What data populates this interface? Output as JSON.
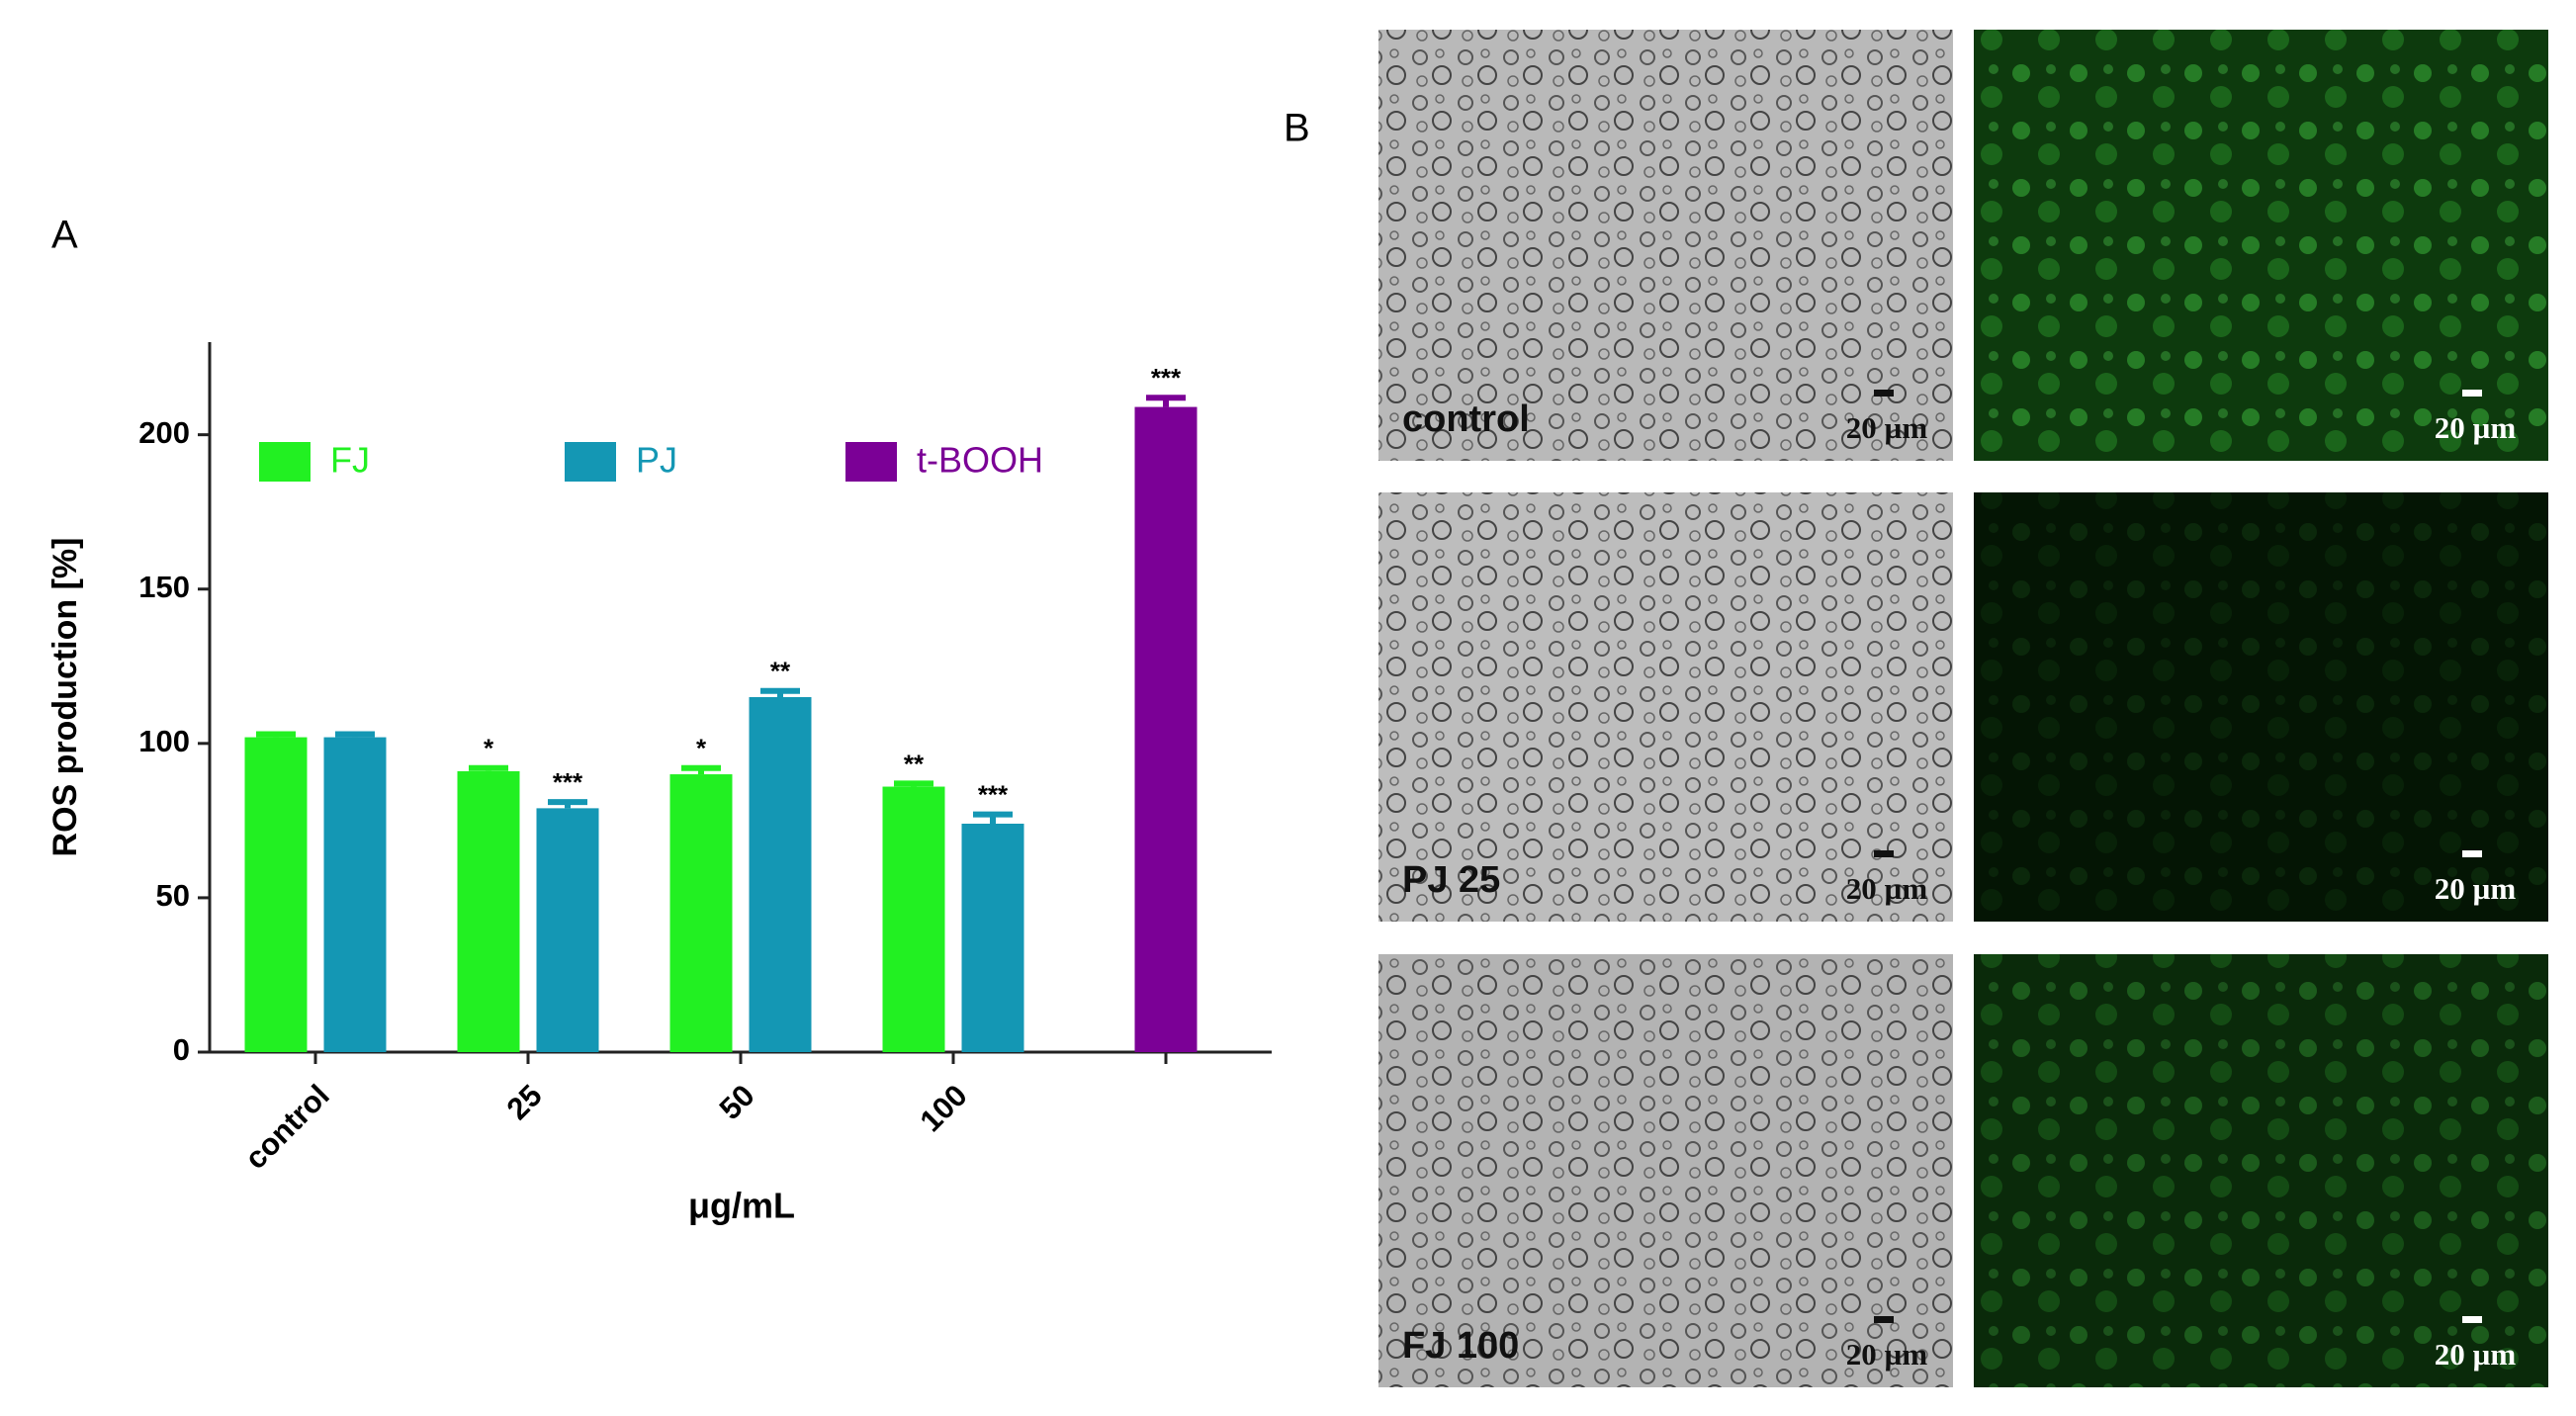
{
  "chart_data": {
    "type": "bar",
    "panel_label": "A",
    "ylabel": "ROS production [%]",
    "xlabel": "μg/mL",
    "categories": [
      "control",
      "25",
      "50",
      "100",
      null
    ],
    "series": [
      {
        "name": "FJ",
        "color": "#22f022",
        "values": [
          102,
          91,
          90,
          86,
          null
        ],
        "errors": [
          1,
          1,
          2,
          1,
          null
        ],
        "annotations": [
          null,
          "*",
          "*",
          "**",
          null
        ]
      },
      {
        "name": "PJ",
        "color": "#1497b4",
        "values": [
          102,
          79,
          115,
          74,
          null
        ],
        "errors": [
          1,
          2,
          2,
          3,
          null
        ],
        "annotations": [
          null,
          "***",
          "**",
          "***",
          null
        ]
      },
      {
        "name": "t-BOOH",
        "color": "#7b0096",
        "values": [
          null,
          null,
          null,
          null,
          209
        ],
        "errors": [
          null,
          null,
          null,
          null,
          3
        ],
        "annotations": [
          null,
          null,
          null,
          null,
          "***"
        ]
      }
    ],
    "ylim": [
      0,
      230
    ],
    "yticks": [
      0,
      50,
      100,
      150,
      200
    ],
    "grid": false
  },
  "panel_b": {
    "label": "B",
    "rows": [
      {
        "label": "control",
        "scale_bright": "20 µm",
        "scale_fluor": "20 µm"
      },
      {
        "label": "PJ 25",
        "scale_bright": "20 µm",
        "scale_fluor": "20 µm"
      },
      {
        "label": "FJ 100",
        "scale_bright": "20 µm",
        "scale_fluor": "20 µm"
      }
    ]
  }
}
